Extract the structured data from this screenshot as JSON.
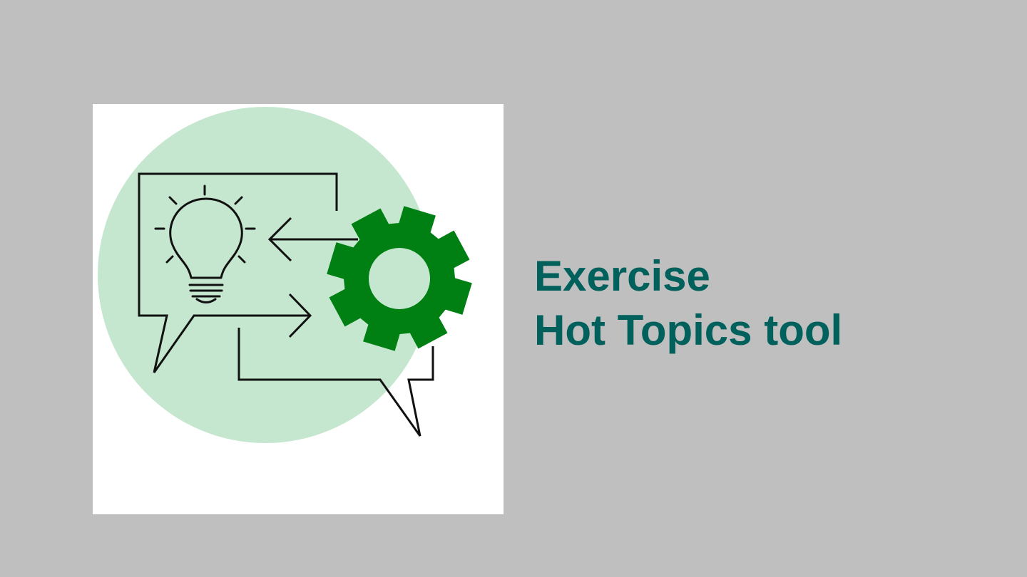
{
  "slide": {
    "title_lines": [
      "Exercise",
      "Hot Topics tool"
    ],
    "illustration": {
      "icons": [
        "lightbulb-icon",
        "gear-icon",
        "speech-bubble-icon",
        "arrow-icon"
      ],
      "colors": {
        "panel_background": "#ffffff",
        "circle": "#c5e6cf",
        "gear": "#008013",
        "outline": "#111111"
      }
    },
    "colors": {
      "background": "#bfbfbf",
      "title_text": "#00605c"
    }
  }
}
